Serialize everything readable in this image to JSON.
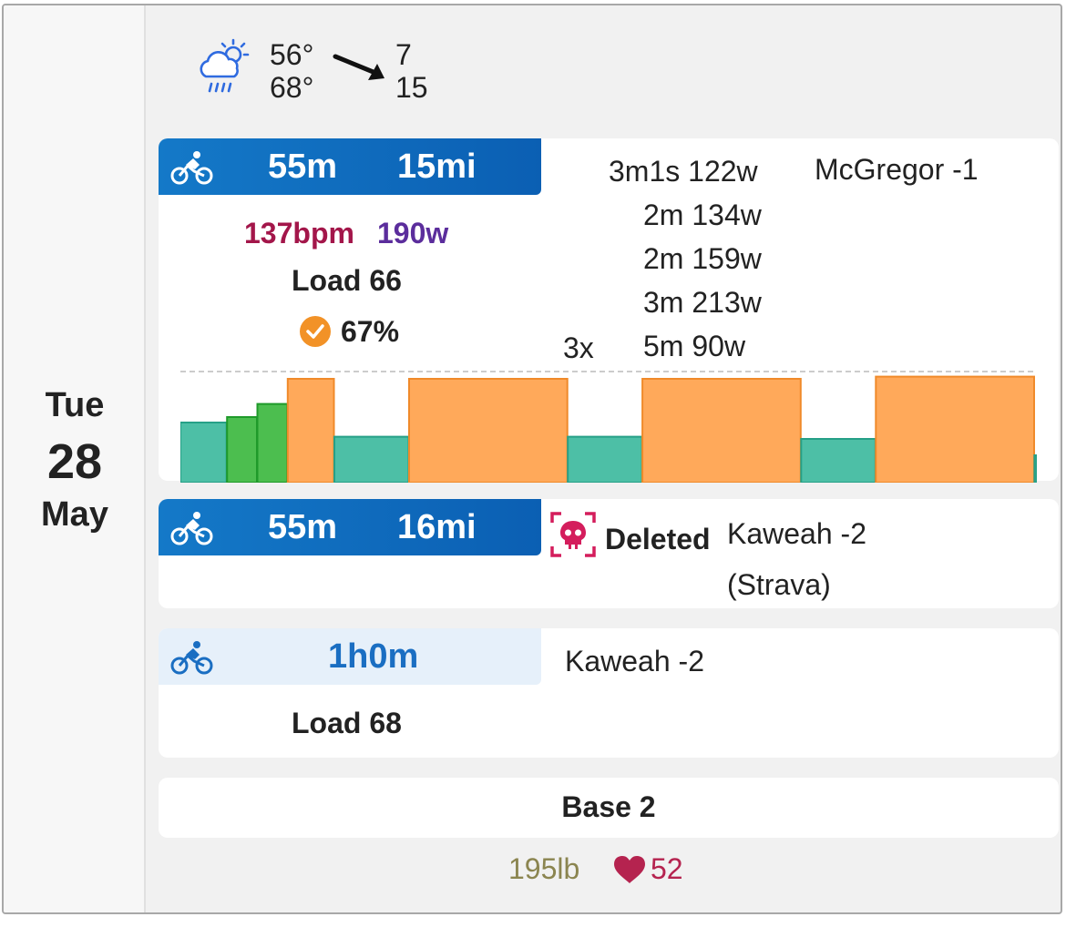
{
  "date": {
    "weekday": "Tue",
    "day": "28",
    "month": "May"
  },
  "weather": {
    "icon": "cloud-sun-rain-icon",
    "temp_low": "56°",
    "temp_high": "68°",
    "wind_low": "7",
    "wind_high": "15",
    "arrow": "wind-direction-arrow"
  },
  "workout1": {
    "sport_icon": "bike-icon",
    "duration": "55m",
    "distance": "15mi",
    "heart_rate": "137bpm",
    "power": "190w",
    "load": "Load 66",
    "compliance": "67%",
    "title": "McGregor -1",
    "intervals": [
      {
        "duration": "3m1s",
        "power": "122w"
      },
      {
        "duration": "2m",
        "power": "134w"
      },
      {
        "duration": "2m",
        "power": "159w"
      },
      {
        "duration": "3m",
        "power": "213w"
      },
      {
        "duration": "5m",
        "power": "90w"
      }
    ],
    "repeat": "3x",
    "colors": {
      "hr": "#a3164a",
      "power": "#5b2d9c",
      "check": "#f29227"
    }
  },
  "workout_chart": {
    "bars": [
      {
        "duration": 1,
        "intensity": 0.55,
        "zone": "z2"
      },
      {
        "duration": 0.65,
        "intensity": 0.6,
        "zone": "z3"
      },
      {
        "duration": 0.65,
        "intensity": 0.72,
        "zone": "z3"
      },
      {
        "duration": 1,
        "intensity": 0.95,
        "zone": "z5"
      },
      {
        "duration": 1.6,
        "intensity": 0.42,
        "zone": "z2"
      },
      {
        "duration": 3.4,
        "intensity": 0.95,
        "zone": "z5"
      },
      {
        "duration": 1.6,
        "intensity": 0.42,
        "zone": "z2"
      },
      {
        "duration": 3.4,
        "intensity": 0.95,
        "zone": "z5"
      },
      {
        "duration": 1.6,
        "intensity": 0.4,
        "zone": "z2"
      },
      {
        "duration": 3.4,
        "intensity": 0.97,
        "zone": "z5"
      },
      {
        "duration": 0.05,
        "intensity": 0.25,
        "zone": "z2"
      }
    ],
    "zone_colors": {
      "z2": "#4dbfa6",
      "z3": "#4cbe4f",
      "z5": "#ffa95a"
    },
    "zone_strokes": {
      "z2": "#26a087",
      "z3": "#1f9a2a",
      "z5": "#f08a2a"
    }
  },
  "workout2": {
    "sport_icon": "bike-icon",
    "duration": "55m",
    "distance": "16mi",
    "status": "Deleted",
    "title_line1": "Kaweah -2",
    "title_line2": "(Strava)",
    "colors": {
      "deleted": "#d41d5c"
    }
  },
  "workout3": {
    "sport_icon": "bike-icon",
    "duration": "1h0m",
    "title": "Kaweah -2",
    "load": "Load 68"
  },
  "note": {
    "text": "Base 2"
  },
  "footer": {
    "weight": "195lb",
    "resting_hr": "52",
    "colors": {
      "weight": "#8b8550",
      "heart": "#b5234f"
    }
  }
}
